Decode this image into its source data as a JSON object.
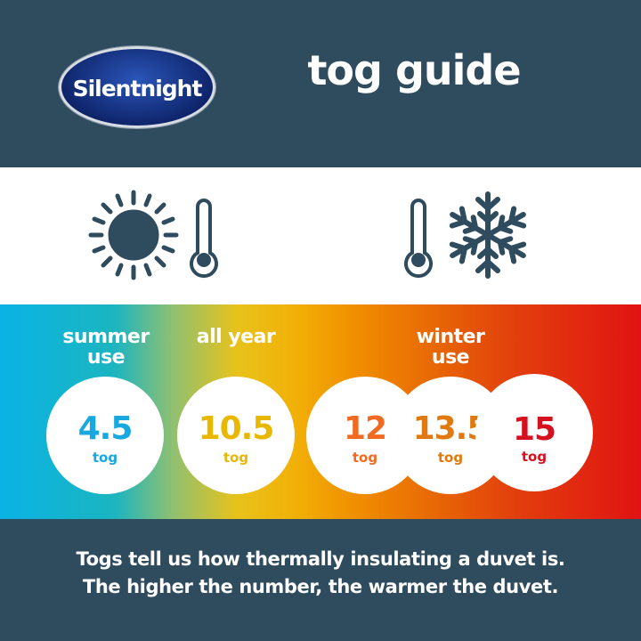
{
  "header": {
    "logo_text": "Silentnight",
    "title": "tog guide"
  },
  "icons": {
    "left": [
      "sun-icon",
      "thermometer-low-icon"
    ],
    "right": [
      "thermometer-low-icon",
      "snowflake-icon"
    ]
  },
  "categories": [
    {
      "label_line1": "summer",
      "label_line2": "use"
    },
    {
      "label_line1": "all year",
      "label_line2": ""
    },
    {
      "label_line1": "winter",
      "label_line2": "use"
    }
  ],
  "togs": [
    {
      "value": "4.5",
      "unit": "tog",
      "color": "#17a8e0"
    },
    {
      "value": "10.5",
      "unit": "tog",
      "color": "#e8b800"
    },
    {
      "value": "12",
      "unit": "tog",
      "color": "#f26a21"
    },
    {
      "value": "13.5",
      "unit": "tog",
      "color": "#e07a10"
    },
    {
      "value": "15",
      "unit": "tog",
      "color": "#d6111e"
    }
  ],
  "footer": {
    "line1": "Togs tell us how thermally insulating a duvet is.",
    "line2": "The higher the number, the warmer the duvet."
  }
}
